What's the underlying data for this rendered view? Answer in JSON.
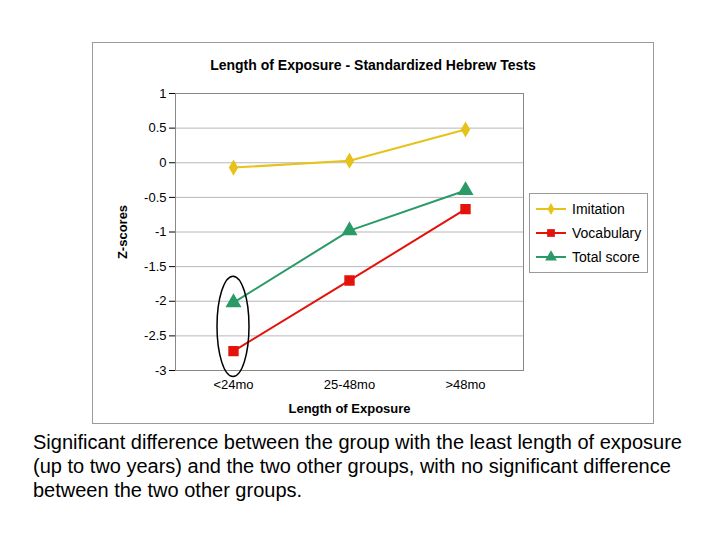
{
  "chart_data": {
    "type": "line",
    "title": "Length of Exposure - Standardized Hebrew Tests",
    "x_label": "Length of Exposure",
    "y_label": "Z-scores",
    "categories": [
      "<24mo",
      "25-48mo",
      ">48mo"
    ],
    "series": [
      {
        "name": "Imitation",
        "color": "#e6c21a",
        "marker": "diamond",
        "values": [
          -0.07,
          0.03,
          0.48
        ]
      },
      {
        "name": "Vocabulary",
        "color": "#e3120b",
        "marker": "square",
        "values": [
          -2.72,
          -1.7,
          -0.67
        ]
      },
      {
        "name": "Total score",
        "color": "#2a9a66",
        "marker": "triangle",
        "values": [
          -2.02,
          -0.98,
          -0.4
        ]
      }
    ],
    "ylim": [
      -3,
      1
    ],
    "yticks": [
      -3,
      -2.5,
      -2,
      -1.5,
      -1,
      -0.5,
      0,
      0.5,
      1
    ],
    "grid": true,
    "legend": "right",
    "caption": "Significant difference between the group with the least length of exposure (up to two years) and the two other groups, with no significant difference between the two other groups."
  }
}
